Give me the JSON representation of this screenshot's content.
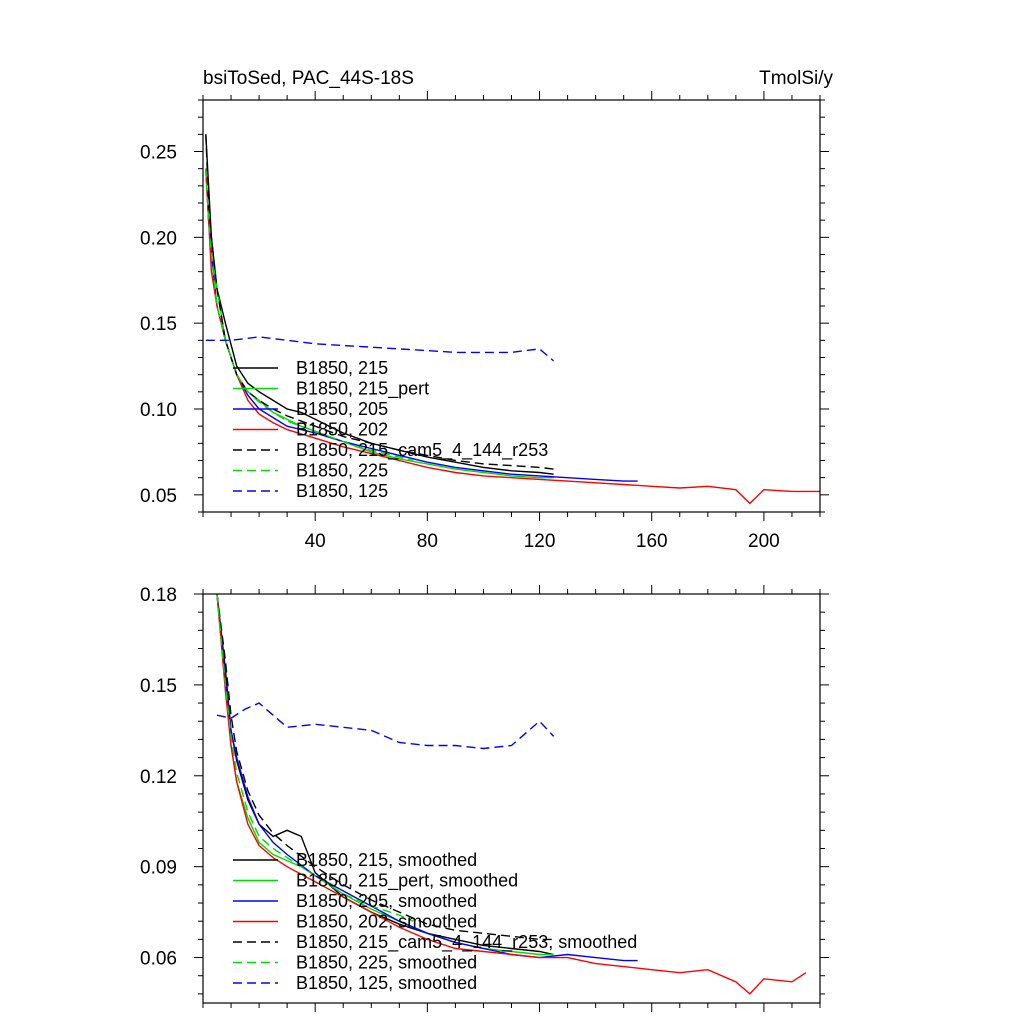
{
  "figure": {
    "title_left": "bsiToSed, PAC_44S-18S",
    "title_right": "TmolSi/y"
  },
  "chart_data": [
    {
      "type": "line",
      "title": "bsiToSed, PAC_44S-18S",
      "units": "TmolSi/y",
      "xlim": [
        0,
        220
      ],
      "ylim": [
        0.04,
        0.28
      ],
      "xticks": [
        40,
        80,
        120,
        160,
        200
      ],
      "xtick_labels": [
        "40",
        "80",
        "120",
        "160",
        "200"
      ],
      "yticks": [
        0.05,
        0.1,
        0.15,
        0.2,
        0.25
      ],
      "ytick_labels": [
        "0.05",
        "0.10",
        "0.15",
        "0.20",
        "0.25"
      ],
      "legend_position": "lower-left",
      "series": [
        {
          "name": "B1850, 215",
          "color": "#000000",
          "dash": "solid",
          "x": [
            1,
            2,
            3,
            5,
            8,
            12,
            16,
            20,
            25,
            30,
            35,
            40,
            45,
            50,
            55,
            60,
            70,
            80,
            90,
            100,
            110,
            120,
            125
          ],
          "y": [
            0.26,
            0.23,
            0.2,
            0.17,
            0.15,
            0.125,
            0.115,
            0.11,
            0.105,
            0.1,
            0.098,
            0.094,
            0.09,
            0.086,
            0.083,
            0.08,
            0.076,
            0.072,
            0.069,
            0.066,
            0.064,
            0.063,
            0.062
          ]
        },
        {
          "name": "B1850, 215_pert",
          "color": "#00dd00",
          "dash": "solid",
          "x": [
            1,
            2,
            3,
            5,
            8,
            12,
            16,
            20,
            25,
            30,
            35,
            40,
            45,
            50,
            55,
            60,
            70,
            80,
            90,
            100,
            110,
            120,
            125
          ],
          "y": [
            0.24,
            0.21,
            0.19,
            0.17,
            0.14,
            0.12,
            0.11,
            0.105,
            0.098,
            0.094,
            0.09,
            0.087,
            0.084,
            0.081,
            0.078,
            0.075,
            0.071,
            0.068,
            0.065,
            0.063,
            0.061,
            0.06,
            0.06
          ]
        },
        {
          "name": "B1850, 205",
          "color": "#0000ff",
          "dash": "solid",
          "x": [
            1,
            2,
            3,
            5,
            8,
            12,
            16,
            20,
            25,
            30,
            40,
            50,
            60,
            70,
            80,
            90,
            100,
            110,
            120,
            130,
            140,
            150,
            155
          ],
          "y": [
            0.24,
            0.21,
            0.19,
            0.16,
            0.14,
            0.12,
            0.108,
            0.1,
            0.095,
            0.09,
            0.086,
            0.081,
            0.077,
            0.073,
            0.069,
            0.066,
            0.064,
            0.062,
            0.061,
            0.06,
            0.059,
            0.058,
            0.058
          ]
        },
        {
          "name": "B1850, 202",
          "color": "#ff0000",
          "dash": "solid",
          "x": [
            1,
            2,
            3,
            5,
            8,
            12,
            16,
            20,
            25,
            30,
            40,
            50,
            60,
            70,
            80,
            90,
            100,
            110,
            120,
            130,
            140,
            150,
            160,
            170,
            180,
            190,
            195,
            200,
            210,
            220
          ],
          "y": [
            0.24,
            0.21,
            0.18,
            0.16,
            0.14,
            0.12,
            0.105,
            0.097,
            0.092,
            0.088,
            0.083,
            0.078,
            0.074,
            0.07,
            0.066,
            0.063,
            0.061,
            0.06,
            0.059,
            0.058,
            0.057,
            0.056,
            0.055,
            0.054,
            0.055,
            0.053,
            0.045,
            0.053,
            0.052,
            0.052
          ]
        },
        {
          "name": "B1850, 215_cam5_4_144_r253",
          "color": "#000000",
          "dash": "dashed",
          "x": [
            1,
            2,
            3,
            5,
            8,
            12,
            16,
            20,
            25,
            30,
            40,
            50,
            60,
            70,
            80,
            90,
            100,
            110,
            120,
            125
          ],
          "y": [
            0.26,
            0.22,
            0.2,
            0.17,
            0.14,
            0.12,
            0.11,
            0.105,
            0.1,
            0.096,
            0.09,
            0.084,
            0.08,
            0.076,
            0.073,
            0.07,
            0.068,
            0.067,
            0.066,
            0.065
          ]
        },
        {
          "name": "B1850, 225",
          "color": "#00dd00",
          "dash": "dashed",
          "x": [
            1,
            2,
            3,
            5,
            8,
            12,
            16,
            20,
            25,
            30,
            35,
            40,
            45,
            50,
            55,
            60,
            65,
            70,
            75
          ],
          "y": [
            0.24,
            0.21,
            0.19,
            0.16,
            0.14,
            0.12,
            0.11,
            0.104,
            0.098,
            0.093,
            0.09,
            0.087,
            0.084,
            0.081,
            0.078,
            0.076,
            0.074,
            0.072,
            0.07
          ]
        },
        {
          "name": "B1850, 125",
          "color": "#0000ff",
          "dash": "dashed",
          "x": [
            1,
            10,
            20,
            30,
            40,
            50,
            60,
            70,
            80,
            90,
            100,
            110,
            120,
            125
          ],
          "y": [
            0.14,
            0.14,
            0.142,
            0.14,
            0.138,
            0.137,
            0.136,
            0.135,
            0.134,
            0.133,
            0.133,
            0.133,
            0.135,
            0.128
          ]
        }
      ]
    },
    {
      "type": "line",
      "xlim": [
        0,
        220
      ],
      "ylim": [
        0.045,
        0.18
      ],
      "xticks": [
        40,
        80,
        120,
        160,
        200
      ],
      "yticks": [
        0.06,
        0.09,
        0.12,
        0.15,
        0.18
      ],
      "ytick_labels": [
        "0.06",
        "0.09",
        "0.12",
        "0.15",
        "0.18"
      ],
      "legend_position": "lower-left",
      "series": [
        {
          "name": "B1850, 215, smoothed",
          "color": "#000000",
          "dash": "solid",
          "x": [
            5,
            8,
            10,
            12,
            16,
            20,
            25,
            30,
            35,
            40,
            50,
            60,
            70,
            80,
            90,
            100,
            110,
            120,
            125
          ],
          "y": [
            0.18,
            0.155,
            0.135,
            0.125,
            0.112,
            0.104,
            0.1,
            0.102,
            0.1,
            0.088,
            0.08,
            0.075,
            0.071,
            0.068,
            0.066,
            0.064,
            0.063,
            0.062,
            0.061
          ]
        },
        {
          "name": "B1850, 215_pert, smoothed",
          "color": "#00dd00",
          "dash": "solid",
          "x": [
            5,
            8,
            10,
            12,
            16,
            20,
            25,
            30,
            35,
            40,
            50,
            60,
            70,
            80,
            90,
            100,
            110,
            120,
            125
          ],
          "y": [
            0.18,
            0.15,
            0.13,
            0.118,
            0.106,
            0.098,
            0.094,
            0.092,
            0.09,
            0.087,
            0.081,
            0.076,
            0.072,
            0.068,
            0.065,
            0.063,
            0.062,
            0.061,
            0.061
          ]
        },
        {
          "name": "B1850, 205, smoothed",
          "color": "#0000ff",
          "dash": "solid",
          "x": [
            5,
            8,
            10,
            12,
            16,
            20,
            25,
            30,
            40,
            50,
            60,
            70,
            80,
            90,
            100,
            110,
            120,
            130,
            140,
            150,
            155
          ],
          "y": [
            0.18,
            0.152,
            0.135,
            0.126,
            0.113,
            0.104,
            0.098,
            0.094,
            0.087,
            0.082,
            0.077,
            0.072,
            0.068,
            0.065,
            0.063,
            0.061,
            0.06,
            0.061,
            0.06,
            0.059,
            0.059
          ]
        },
        {
          "name": "B1850, 202, smoothed",
          "color": "#ff0000",
          "dash": "solid",
          "x": [
            5,
            8,
            10,
            12,
            16,
            20,
            25,
            30,
            40,
            50,
            60,
            70,
            80,
            90,
            100,
            110,
            120,
            130,
            140,
            150,
            160,
            170,
            180,
            190,
            195,
            200,
            210,
            215
          ],
          "y": [
            0.18,
            0.148,
            0.13,
            0.118,
            0.104,
            0.097,
            0.093,
            0.09,
            0.085,
            0.08,
            0.075,
            0.07,
            0.066,
            0.063,
            0.062,
            0.061,
            0.06,
            0.06,
            0.058,
            0.057,
            0.056,
            0.055,
            0.056,
            0.052,
            0.048,
            0.053,
            0.052,
            0.055
          ]
        },
        {
          "name": "B1850, 215_cam5_4_144_r253, smoothed",
          "color": "#000000",
          "dash": "dashed",
          "x": [
            5,
            8,
            10,
            12,
            16,
            20,
            25,
            30,
            40,
            50,
            60,
            70,
            80,
            90,
            100,
            110,
            120,
            125
          ],
          "y": [
            0.18,
            0.158,
            0.14,
            0.128,
            0.115,
            0.107,
            0.101,
            0.097,
            0.09,
            0.084,
            0.079,
            0.075,
            0.071,
            0.069,
            0.068,
            0.067,
            0.066,
            0.066
          ]
        },
        {
          "name": "B1850, 225, smoothed",
          "color": "#00dd00",
          "dash": "dashed",
          "x": [
            5,
            8,
            10,
            12,
            16,
            20,
            25,
            30,
            40,
            50,
            60,
            70,
            75
          ],
          "y": [
            0.18,
            0.15,
            0.133,
            0.121,
            0.108,
            0.1,
            0.096,
            0.093,
            0.087,
            0.081,
            0.077,
            0.074,
            0.072
          ]
        },
        {
          "name": "B1850, 125, smoothed",
          "color": "#0000ff",
          "dash": "dashed",
          "x": [
            5,
            10,
            15,
            20,
            25,
            30,
            40,
            50,
            60,
            70,
            80,
            90,
            100,
            110,
            120,
            125
          ],
          "y": [
            0.14,
            0.139,
            0.142,
            0.144,
            0.14,
            0.136,
            0.137,
            0.136,
            0.135,
            0.131,
            0.13,
            0.13,
            0.129,
            0.13,
            0.138,
            0.133
          ]
        }
      ]
    }
  ]
}
